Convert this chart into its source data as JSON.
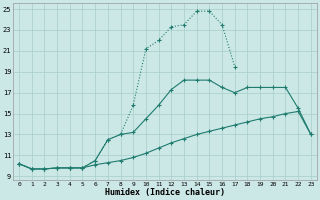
{
  "xlabel": "Humidex (Indice chaleur)",
  "background_color": "#cce8e6",
  "grid_color": "#a8ceca",
  "line_color": "#1e7b6e",
  "xlim_min": -0.5,
  "xlim_max": 23.5,
  "ylim_min": 8.6,
  "ylim_max": 25.6,
  "xticks": [
    0,
    1,
    2,
    3,
    4,
    5,
    6,
    7,
    8,
    9,
    10,
    11,
    12,
    13,
    14,
    15,
    16,
    17,
    18,
    19,
    20,
    21,
    22,
    23
  ],
  "yticks": [
    9,
    11,
    13,
    15,
    17,
    19,
    21,
    23,
    25
  ],
  "curve_top_x": [
    0,
    1,
    2,
    3,
    4,
    5,
    6,
    7,
    8,
    9,
    10,
    11,
    12,
    13,
    14,
    15,
    16,
    17
  ],
  "curve_top_y": [
    10.2,
    9.7,
    9.7,
    9.8,
    9.8,
    9.8,
    10.5,
    12.5,
    13.0,
    15.8,
    21.2,
    22.0,
    23.3,
    23.5,
    24.8,
    24.8,
    23.5,
    19.5
  ],
  "curve_mid_x": [
    0,
    1,
    2,
    3,
    4,
    5,
    6,
    7,
    8,
    9,
    10,
    11,
    12,
    13,
    14,
    15,
    16,
    17,
    18,
    19,
    20,
    21,
    22,
    23
  ],
  "curve_mid_y": [
    10.2,
    9.7,
    9.7,
    9.8,
    9.8,
    9.8,
    10.5,
    12.5,
    13.0,
    13.2,
    14.5,
    15.8,
    17.3,
    18.2,
    18.2,
    18.2,
    17.5,
    17.0,
    17.5,
    17.5,
    17.5,
    17.5,
    15.5,
    13.0
  ],
  "curve_bot_x": [
    0,
    1,
    2,
    3,
    4,
    5,
    6,
    7,
    8,
    9,
    10,
    11,
    12,
    13,
    14,
    15,
    16,
    17,
    18,
    19,
    20,
    21,
    22,
    23
  ],
  "curve_bot_y": [
    10.2,
    9.7,
    9.7,
    9.8,
    9.8,
    9.8,
    10.1,
    10.3,
    10.5,
    10.8,
    11.2,
    11.7,
    12.2,
    12.6,
    13.0,
    13.3,
    13.6,
    13.9,
    14.2,
    14.5,
    14.7,
    15.0,
    15.2,
    13.0
  ]
}
